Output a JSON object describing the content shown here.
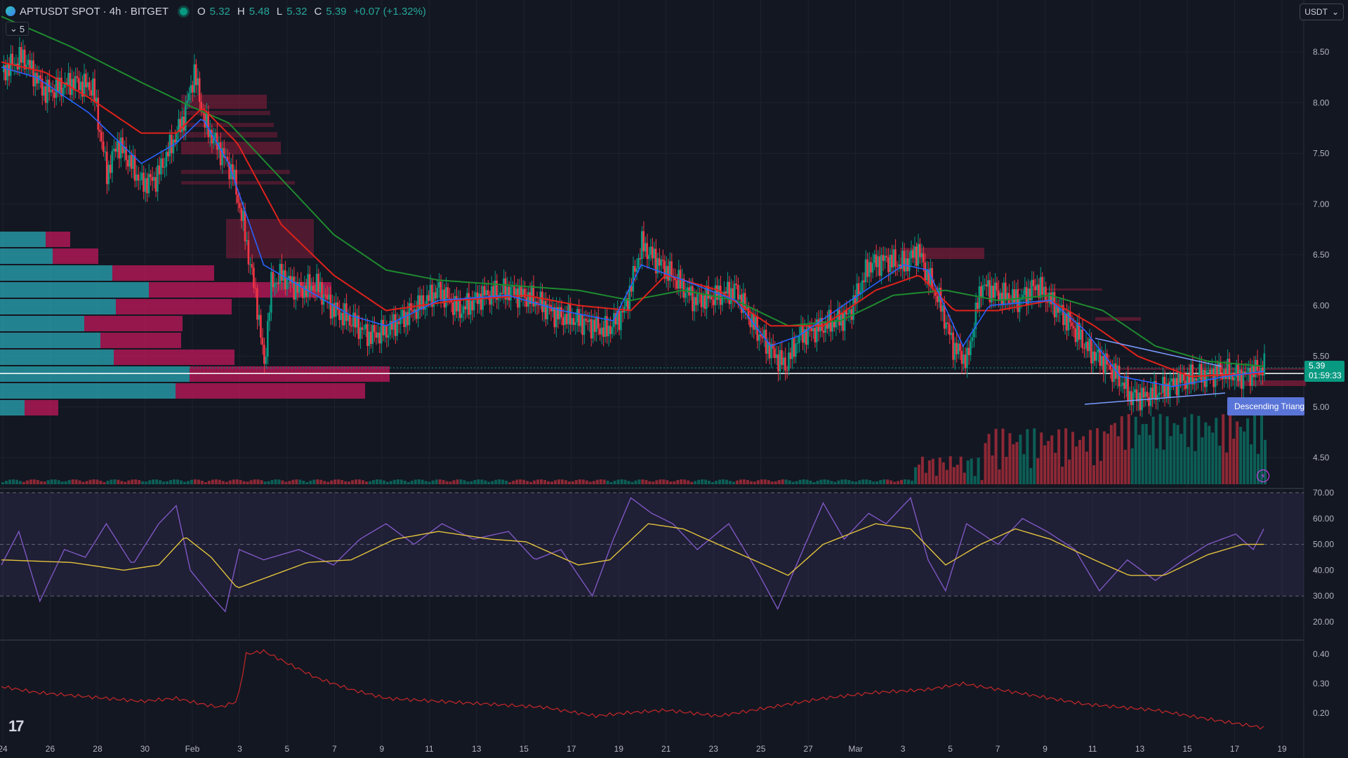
{
  "header": {
    "symbol": "APTUSDT SPOT · 4h · BITGET",
    "open_label": "O",
    "open": "5.32",
    "high_label": "H",
    "high": "5.48",
    "low_label": "L",
    "low": "5.32",
    "close_label": "C",
    "close": "5.39",
    "change": "+0.07 (+1.32%)",
    "collapse_count": "5",
    "currency": "USDT"
  },
  "last_price": {
    "value": "5.39",
    "countdown": "01:59:33"
  },
  "pattern_label": "Descending Triangle",
  "colors": {
    "up": "#089981",
    "down": "#f23645",
    "rsi": "#7e57c2",
    "rsi_ma": "#e2c33d",
    "ma_red": "#e0221b",
    "ma_green": "#1e8a2f",
    "ma_blue": "#2962ff"
  },
  "chart_data": [
    {
      "type": "candlestick",
      "title": "APTUSDT SPOT · 4h · BITGET",
      "x_ticks": [
        "24",
        "26",
        "28",
        "30",
        "Feb",
        "3",
        "5",
        "7",
        "9",
        "11",
        "13",
        "15",
        "17",
        "19",
        "21",
        "23",
        "25",
        "27",
        "Mar",
        "3",
        "5",
        "7",
        "9",
        "11",
        "13",
        "15",
        "17",
        "19"
      ],
      "y_ticks": [
        "8.50",
        "8.00",
        "7.50",
        "7.00",
        "6.50",
        "6.00",
        "5.50",
        "5.00",
        "4.50"
      ],
      "ylim": [
        4.2,
        8.95
      ],
      "close_path": [
        [
          0,
          8.3
        ],
        [
          12,
          8.45
        ],
        [
          25,
          8.1
        ],
        [
          40,
          8.2
        ],
        [
          52,
          8.15
        ],
        [
          60,
          7.3
        ],
        [
          66,
          7.6
        ],
        [
          72,
          7.45
        ],
        [
          80,
          7.2
        ],
        [
          88,
          7.25
        ],
        [
          96,
          7.55
        ],
        [
          104,
          7.85
        ],
        [
          110,
          8.3
        ],
        [
          116,
          7.8
        ],
        [
          124,
          7.55
        ],
        [
          132,
          7.3
        ],
        [
          138,
          6.8
        ],
        [
          146,
          6.0
        ],
        [
          150,
          5.4
        ],
        [
          154,
          6.2
        ],
        [
          160,
          6.3
        ],
        [
          170,
          6.15
        ],
        [
          180,
          6.2
        ],
        [
          190,
          5.95
        ],
        [
          200,
          5.85
        ],
        [
          210,
          5.7
        ],
        [
          220,
          5.75
        ],
        [
          235,
          5.95
        ],
        [
          250,
          6.15
        ],
        [
          262,
          5.95
        ],
        [
          275,
          6.1
        ],
        [
          290,
          6.15
        ],
        [
          305,
          6.05
        ],
        [
          318,
          5.9
        ],
        [
          330,
          5.85
        ],
        [
          346,
          5.75
        ],
        [
          356,
          5.95
        ],
        [
          366,
          6.6
        ],
        [
          374,
          6.45
        ],
        [
          386,
          6.25
        ],
        [
          396,
          6.05
        ],
        [
          410,
          6.1
        ],
        [
          420,
          6.15
        ],
        [
          430,
          5.8
        ],
        [
          440,
          5.55
        ],
        [
          448,
          5.4
        ],
        [
          456,
          5.7
        ],
        [
          470,
          5.8
        ],
        [
          484,
          5.9
        ],
        [
          496,
          6.4
        ],
        [
          506,
          6.45
        ],
        [
          516,
          6.4
        ],
        [
          524,
          6.55
        ],
        [
          528,
          6.35
        ],
        [
          536,
          6.05
        ],
        [
          544,
          5.6
        ],
        [
          552,
          5.45
        ],
        [
          560,
          6.2
        ],
        [
          572,
          6.1
        ],
        [
          582,
          6.05
        ],
        [
          592,
          6.2
        ],
        [
          602,
          6.0
        ],
        [
          612,
          5.8
        ],
        [
          622,
          5.55
        ],
        [
          630,
          5.45
        ],
        [
          638,
          5.3
        ],
        [
          646,
          5.1
        ],
        [
          654,
          5.1
        ],
        [
          662,
          5.15
        ],
        [
          672,
          5.25
        ],
        [
          684,
          5.3
        ],
        [
          698,
          5.35
        ],
        [
          708,
          5.3
        ],
        [
          716,
          5.35
        ],
        [
          722,
          5.39
        ]
      ],
      "ma_fast": [
        [
          0,
          8.35
        ],
        [
          20,
          8.25
        ],
        [
          50,
          7.9
        ],
        [
          80,
          7.4
        ],
        [
          100,
          7.6
        ],
        [
          115,
          7.85
        ],
        [
          130,
          7.4
        ],
        [
          150,
          6.4
        ],
        [
          170,
          6.2
        ],
        [
          200,
          5.9
        ],
        [
          220,
          5.8
        ],
        [
          250,
          6.05
        ],
        [
          290,
          6.1
        ],
        [
          320,
          5.95
        ],
        [
          350,
          5.85
        ],
        [
          366,
          6.4
        ],
        [
          390,
          6.25
        ],
        [
          420,
          6.05
        ],
        [
          440,
          5.6
        ],
        [
          456,
          5.7
        ],
        [
          490,
          6.1
        ],
        [
          516,
          6.4
        ],
        [
          530,
          6.35
        ],
        [
          550,
          5.6
        ],
        [
          565,
          6.0
        ],
        [
          600,
          6.05
        ],
        [
          620,
          5.75
        ],
        [
          640,
          5.3
        ],
        [
          670,
          5.2
        ],
        [
          700,
          5.3
        ],
        [
          722,
          5.35
        ]
      ],
      "ma_mid": [
        [
          0,
          8.4
        ],
        [
          25,
          8.3
        ],
        [
          50,
          8.05
        ],
        [
          80,
          7.7
        ],
        [
          100,
          7.7
        ],
        [
          115,
          7.95
        ],
        [
          135,
          7.6
        ],
        [
          160,
          6.8
        ],
        [
          190,
          6.3
        ],
        [
          220,
          5.95
        ],
        [
          260,
          6.05
        ],
        [
          300,
          6.1
        ],
        [
          330,
          6.0
        ],
        [
          360,
          5.95
        ],
        [
          380,
          6.3
        ],
        [
          410,
          6.15
        ],
        [
          440,
          5.8
        ],
        [
          470,
          5.8
        ],
        [
          500,
          6.15
        ],
        [
          525,
          6.3
        ],
        [
          545,
          5.95
        ],
        [
          570,
          5.95
        ],
        [
          600,
          6.05
        ],
        [
          625,
          5.8
        ],
        [
          650,
          5.5
        ],
        [
          680,
          5.3
        ],
        [
          705,
          5.32
        ],
        [
          722,
          5.33
        ]
      ],
      "ma_slow": [
        [
          0,
          8.85
        ],
        [
          40,
          8.55
        ],
        [
          80,
          8.2
        ],
        [
          110,
          7.95
        ],
        [
          130,
          7.8
        ],
        [
          160,
          7.25
        ],
        [
          190,
          6.7
        ],
        [
          220,
          6.35
        ],
        [
          250,
          6.25
        ],
        [
          290,
          6.2
        ],
        [
          330,
          6.15
        ],
        [
          360,
          6.05
        ],
        [
          390,
          6.15
        ],
        [
          420,
          6.05
        ],
        [
          450,
          5.8
        ],
        [
          480,
          5.85
        ],
        [
          510,
          6.1
        ],
        [
          540,
          6.15
        ],
        [
          570,
          6.05
        ],
        [
          600,
          6.1
        ],
        [
          630,
          5.95
        ],
        [
          660,
          5.6
        ],
        [
          690,
          5.45
        ],
        [
          722,
          5.4
        ]
      ],
      "horizontal_line": 5.33
    },
    {
      "type": "line",
      "title": "",
      "y_ticks": [
        "70.00",
        "60.00",
        "50.00",
        "40.00",
        "30.00",
        "20.00"
      ],
      "ylim": [
        15,
        72
      ],
      "bands": [
        30,
        50,
        70
      ],
      "rsi": [
        [
          0,
          42
        ],
        [
          10,
          55
        ],
        [
          22,
          28
        ],
        [
          36,
          48
        ],
        [
          48,
          45
        ],
        [
          60,
          58
        ],
        [
          75,
          42
        ],
        [
          90,
          58
        ],
        [
          100,
          65
        ],
        [
          108,
          40
        ],
        [
          120,
          30
        ],
        [
          128,
          24
        ],
        [
          136,
          48
        ],
        [
          150,
          44
        ],
        [
          170,
          48
        ],
        [
          190,
          42
        ],
        [
          205,
          52
        ],
        [
          220,
          58
        ],
        [
          236,
          50
        ],
        [
          252,
          58
        ],
        [
          270,
          52
        ],
        [
          290,
          55
        ],
        [
          305,
          44
        ],
        [
          320,
          48
        ],
        [
          338,
          30
        ],
        [
          350,
          52
        ],
        [
          360,
          68
        ],
        [
          372,
          62
        ],
        [
          384,
          58
        ],
        [
          398,
          48
        ],
        [
          416,
          58
        ],
        [
          432,
          40
        ],
        [
          444,
          25
        ],
        [
          456,
          44
        ],
        [
          470,
          66
        ],
        [
          482,
          52
        ],
        [
          496,
          62
        ],
        [
          506,
          58
        ],
        [
          520,
          68
        ],
        [
          530,
          44
        ],
        [
          540,
          32
        ],
        [
          552,
          58
        ],
        [
          570,
          50
        ],
        [
          584,
          60
        ],
        [
          598,
          55
        ],
        [
          614,
          48
        ],
        [
          628,
          32
        ],
        [
          644,
          44
        ],
        [
          660,
          36
        ],
        [
          676,
          44
        ],
        [
          690,
          50
        ],
        [
          706,
          54
        ],
        [
          716,
          48
        ],
        [
          722,
          56
        ]
      ],
      "rsi_ma": [
        [
          0,
          44
        ],
        [
          40,
          43
        ],
        [
          70,
          40
        ],
        [
          90,
          42
        ],
        [
          105,
          53
        ],
        [
          120,
          45
        ],
        [
          135,
          33
        ],
        [
          155,
          38
        ],
        [
          175,
          43
        ],
        [
          200,
          44
        ],
        [
          225,
          52
        ],
        [
          250,
          55
        ],
        [
          280,
          52
        ],
        [
          300,
          51
        ],
        [
          330,
          42
        ],
        [
          348,
          44
        ],
        [
          370,
          58
        ],
        [
          390,
          56
        ],
        [
          410,
          50
        ],
        [
          430,
          44
        ],
        [
          450,
          38
        ],
        [
          470,
          50
        ],
        [
          500,
          58
        ],
        [
          520,
          56
        ],
        [
          540,
          42
        ],
        [
          560,
          50
        ],
        [
          580,
          56
        ],
        [
          600,
          52
        ],
        [
          625,
          44
        ],
        [
          645,
          38
        ],
        [
          665,
          38
        ],
        [
          690,
          46
        ],
        [
          710,
          50
        ],
        [
          722,
          50
        ]
      ]
    },
    {
      "type": "line",
      "title": "",
      "y_ticks": [
        "0.40",
        "0.30",
        "0.20"
      ],
      "ylim": [
        0.13,
        0.43
      ],
      "values": [
        [
          0,
          0.29
        ],
        [
          20,
          0.27
        ],
        [
          40,
          0.26
        ],
        [
          60,
          0.25
        ],
        [
          80,
          0.24
        ],
        [
          100,
          0.25
        ],
        [
          115,
          0.23
        ],
        [
          125,
          0.22
        ],
        [
          135,
          0.24
        ],
        [
          140,
          0.4
        ],
        [
          150,
          0.41
        ],
        [
          160,
          0.38
        ],
        [
          180,
          0.32
        ],
        [
          200,
          0.28
        ],
        [
          220,
          0.25
        ],
        [
          250,
          0.24
        ],
        [
          280,
          0.23
        ],
        [
          310,
          0.22
        ],
        [
          340,
          0.19
        ],
        [
          356,
          0.2
        ],
        [
          380,
          0.21
        ],
        [
          410,
          0.19
        ],
        [
          440,
          0.22
        ],
        [
          470,
          0.25
        ],
        [
          500,
          0.27
        ],
        [
          530,
          0.28
        ],
        [
          550,
          0.3
        ],
        [
          570,
          0.28
        ],
        [
          600,
          0.25
        ],
        [
          620,
          0.23
        ],
        [
          640,
          0.22
        ],
        [
          660,
          0.21
        ],
        [
          690,
          0.18
        ],
        [
          722,
          0.15
        ]
      ]
    }
  ]
}
